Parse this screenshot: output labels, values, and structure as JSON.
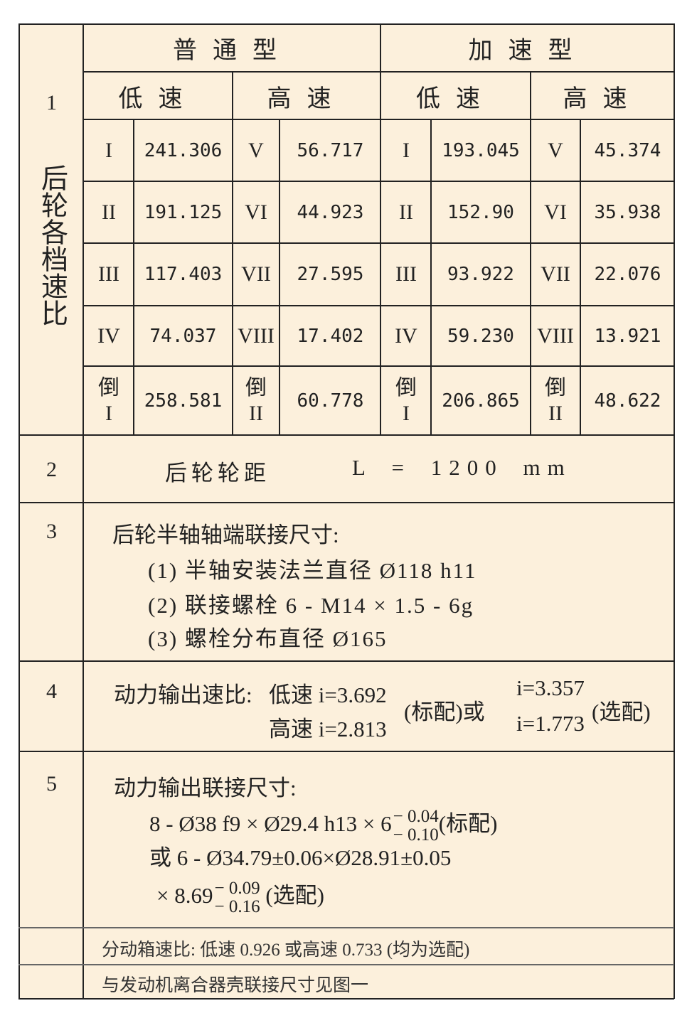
{
  "table": {
    "row1": {
      "index": "1",
      "label": "后轮各档速比",
      "types": [
        "普通型",
        "加速型"
      ],
      "speeds": [
        "低速",
        "高速",
        "低速",
        "高速"
      ],
      "groups": [
        {
          "gears": [
            "I",
            "II",
            "III",
            "IV",
            "倒I"
          ],
          "values": [
            "241.306",
            "191.125",
            "117.403",
            "74.037",
            "258.581"
          ]
        },
        {
          "gears": [
            "V",
            "VI",
            "VII",
            "VIII",
            "倒II"
          ],
          "values": [
            "56.717",
            "44.923",
            "27.595",
            "17.402",
            "60.778"
          ]
        },
        {
          "gears": [
            "I",
            "II",
            "III",
            "IV",
            "倒I"
          ],
          "values": [
            "193.045",
            "152.90",
            "93.922",
            "59.230",
            "206.865"
          ]
        },
        {
          "gears": [
            "V",
            "VI",
            "VII",
            "VIII",
            "倒II"
          ],
          "values": [
            "45.374",
            "35.938",
            "22.076",
            "13.921",
            "48.622"
          ]
        }
      ]
    },
    "row2": {
      "index": "2",
      "label": "后轮轮距",
      "formula": "L = 1200 mm"
    },
    "row3": {
      "index": "3",
      "title": "后轮半轴轴端联接尺寸:",
      "items": [
        "(1) 半轴安装法兰直径 Ø118 h11",
        "(2) 联接螺栓 6 - M14 × 1.5 - 6g",
        "(3) 螺栓分布直径 Ø165"
      ]
    },
    "row4": {
      "index": "4",
      "title": "动力输出速比:",
      "low": "低速 i=3.692",
      "high": "高速 i=2.813",
      "standard": "(标配)或",
      "opt_low": "i=3.357",
      "opt_high": "i=1.773",
      "optional": "(选配)"
    },
    "row5": {
      "index": "5",
      "title": "动力输出联接尺寸:",
      "line1": "8 - Ø38 f9 × Ø29.4 h13 × 6",
      "line1_tol_upper": "− 0.04",
      "line1_tol_lower": "− 0.10",
      "line1_note": "(标配)",
      "line2": "或 6 - Ø34.79±0.06×Ø28.91±0.05",
      "line3": "× 8.69",
      "line3_tol_upper": "− 0.09",
      "line3_tol_lower": "− 0.16",
      "line3_note": "(选配)"
    },
    "row6": {
      "text": "分动箱速比:  低速 0.926  或高速 0.733 (均为选配)"
    },
    "row7": {
      "text": "与发动机离合器壳联接尺寸见图一"
    }
  }
}
